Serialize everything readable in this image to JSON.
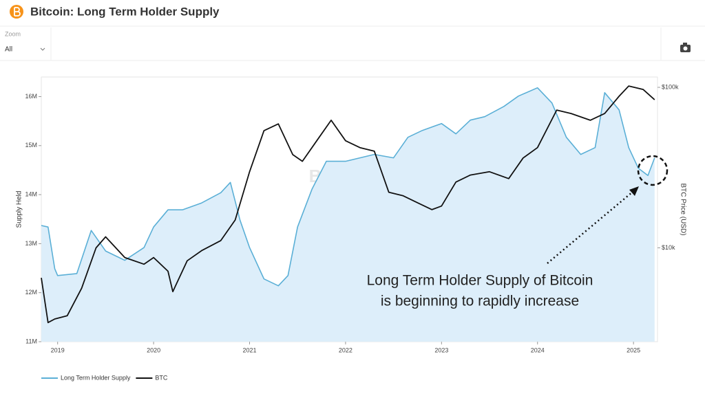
{
  "header": {
    "title": "Bitcoin: Long Term Holder Supply",
    "zoom_label": "Zoom",
    "zoom_value": "All"
  },
  "chart_data": {
    "type": "line",
    "y_label": "Supply Held",
    "y2_label": "BTC Price (USD)",
    "watermark": [
      "BITCOIN MAGAZINE",
      "PRO"
    ],
    "annotation": [
      "Long Term Holder Supply of Bitcoin",
      "is beginning to rapidly increase"
    ],
    "xlim": [
      2018.83,
      2025.25
    ],
    "xticks": [
      2019,
      2020,
      2021,
      2022,
      2023,
      2024,
      2025
    ],
    "ylim": [
      11,
      16.4
    ],
    "yticks": [
      {
        "value": 11,
        "label": "11M"
      },
      {
        "value": 12,
        "label": "12M"
      },
      {
        "value": 13,
        "label": "13M"
      },
      {
        "value": 14,
        "label": "14M"
      },
      {
        "value": 15,
        "label": "15M"
      },
      {
        "value": 16,
        "label": "16M"
      }
    ],
    "y2lim": [
      2600,
      116000
    ],
    "y2scale": "log",
    "y2ticks": [
      {
        "value": 10000,
        "label": "$10k"
      },
      {
        "value": 100000,
        "label": "$100k"
      }
    ],
    "series": [
      {
        "name": "Long Term Holder Supply",
        "color": "#5aafd6",
        "fill": "#ddeefa",
        "area": true,
        "x": [
          2018.83,
          2018.9,
          2018.97,
          2019.0,
          2019.2,
          2019.35,
          2019.5,
          2019.7,
          2019.9,
          2020.0,
          2020.15,
          2020.3,
          2020.5,
          2020.7,
          2020.8,
          2020.9,
          2021.0,
          2021.15,
          2021.3,
          2021.4,
          2021.5,
          2021.65,
          2021.8,
          2022.0,
          2022.15,
          2022.3,
          2022.5,
          2022.65,
          2022.8,
          2023.0,
          2023.15,
          2023.3,
          2023.45,
          2023.65,
          2023.8,
          2024.0,
          2024.15,
          2024.3,
          2024.45,
          2024.6,
          2024.7,
          2024.85,
          2024.95,
          2025.05,
          2025.15,
          2025.22
        ],
        "values": [
          13.37,
          13.34,
          12.49,
          12.35,
          12.39,
          13.27,
          12.85,
          12.66,
          12.92,
          13.34,
          13.69,
          13.69,
          13.83,
          14.04,
          14.25,
          13.48,
          12.92,
          12.28,
          12.14,
          12.35,
          13.34,
          14.11,
          14.68,
          14.68,
          14.75,
          14.82,
          14.75,
          15.17,
          15.31,
          15.45,
          15.24,
          15.52,
          15.59,
          15.8,
          16.01,
          16.18,
          15.87,
          15.17,
          14.82,
          14.96,
          16.08,
          15.73,
          14.96,
          14.54,
          14.39,
          14.75
        ]
      },
      {
        "name": "BTC",
        "color": "#111111",
        "axis": "y2",
        "x": [
          2018.83,
          2018.9,
          2018.97,
          2019.1,
          2019.25,
          2019.4,
          2019.5,
          2019.7,
          2019.9,
          2020.0,
          2020.15,
          2020.2,
          2020.35,
          2020.5,
          2020.7,
          2020.85,
          2021.0,
          2021.15,
          2021.3,
          2021.45,
          2021.55,
          2021.7,
          2021.85,
          2022.0,
          2022.15,
          2022.3,
          2022.45,
          2022.6,
          2022.75,
          2022.9,
          2023.0,
          2023.15,
          2023.3,
          2023.5,
          2023.7,
          2023.85,
          2024.0,
          2024.2,
          2024.35,
          2024.55,
          2024.7,
          2024.85,
          2024.95,
          2025.1,
          2025.22
        ],
        "values": [
          6500,
          3420,
          3600,
          3770,
          5600,
          10000,
          11700,
          8700,
          7900,
          8700,
          7150,
          5330,
          8300,
          9600,
          11100,
          14900,
          29800,
          53700,
          59200,
          38100,
          34600,
          46500,
          62400,
          46500,
          42100,
          40000,
          22200,
          21100,
          19100,
          17300,
          18200,
          25700,
          28400,
          29800,
          27000,
          36300,
          42100,
          72200,
          68700,
          62400,
          68700,
          88000,
          101900,
          97000,
          83700
        ]
      }
    ]
  }
}
